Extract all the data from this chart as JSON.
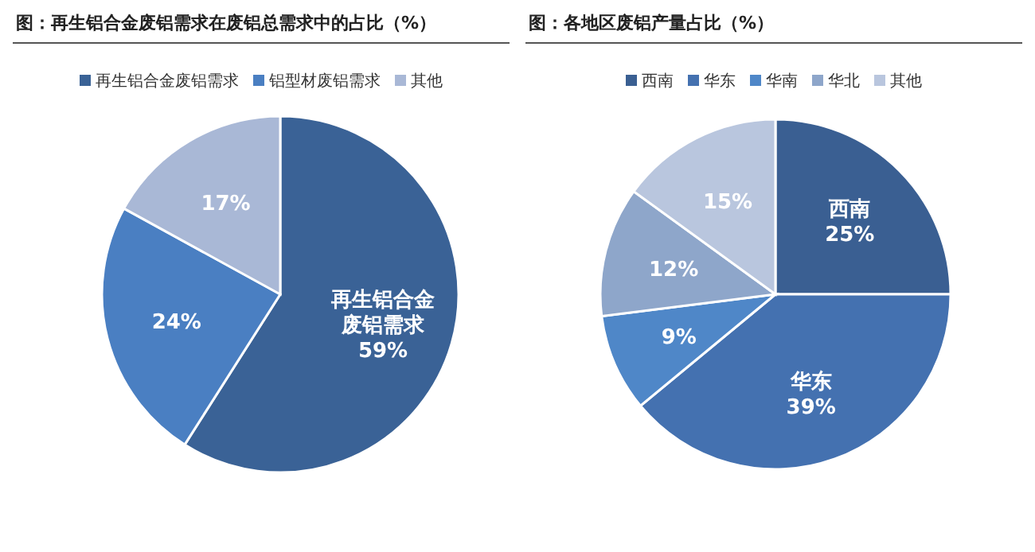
{
  "chart_data": [
    {
      "type": "pie",
      "title": "图：再生铝合金废铝需求在废铝总需求中的占比（%）",
      "categories": [
        "再生铝合金废铝需求",
        "铝型材废铝需求",
        "其他"
      ],
      "values": [
        59,
        24,
        17
      ],
      "colors": [
        "#3a6296",
        "#4a7fc2",
        "#a9b8d6"
      ],
      "value_labels": [
        "再生铝合金废铝需求\n59%",
        "24%",
        "17%"
      ],
      "legend": "top"
    },
    {
      "type": "pie",
      "title": "图：各地区废铝产量占比（%）",
      "categories": [
        "西南",
        "华东",
        "华南",
        "华北",
        "其他"
      ],
      "values": [
        25,
        39,
        9,
        12,
        15
      ],
      "colors": [
        "#3a5f92",
        "#4471b0",
        "#4f87c8",
        "#8ea6ca",
        "#b9c6de"
      ],
      "value_labels": [
        "西南\n25%",
        "华东\n39%",
        "9%",
        "12%",
        "15%"
      ],
      "legend": "top"
    }
  ]
}
